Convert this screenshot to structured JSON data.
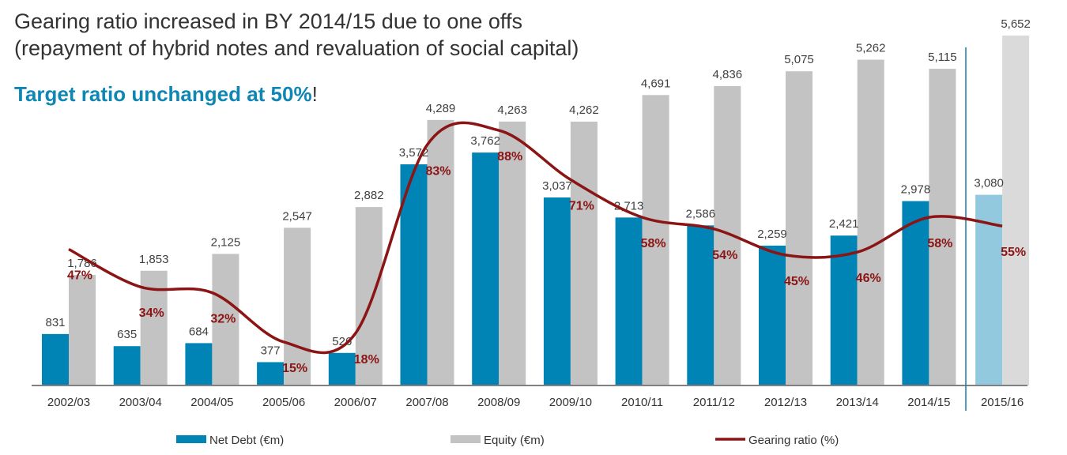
{
  "title": {
    "line1": "Gearing ratio increased in BY 2014/15 due to one offs",
    "line2": "(repayment of hybrid notes and revaluation of social capital)",
    "highlight": "Target ratio unchanged at 50%",
    "highlight_suffix": "!"
  },
  "chart_data": {
    "type": "bar",
    "categories": [
      "2002/03",
      "2003/04",
      "2004/05",
      "2005/06",
      "2006/07",
      "2007/08",
      "2008/09",
      "2009/10",
      "2010/11",
      "2011/12",
      "2012/13",
      "2013/14",
      "2014/15",
      "2015/16"
    ],
    "series": [
      {
        "name": "Net Debt (€m)",
        "kind": "bar",
        "color": "#0083b5",
        "forecast_color": "#92c9df",
        "values": [
          831,
          635,
          684,
          377,
          526,
          3572,
          3762,
          3037,
          2713,
          2586,
          2259,
          2421,
          2978,
          3080
        ],
        "labels": [
          "831",
          "635",
          "684",
          "377",
          "526",
          "3,572",
          "3,762",
          "3,037",
          "2,713",
          "2,586",
          "2,259",
          "2,421",
          "2,978",
          "3,080"
        ]
      },
      {
        "name": "Equity (€m)",
        "kind": "bar",
        "color": "#c3c3c3",
        "forecast_color": "#dadada",
        "values": [
          1786,
          1853,
          2125,
          2547,
          2882,
          4289,
          4263,
          4262,
          4691,
          4836,
          5075,
          5262,
          5115,
          5652
        ],
        "labels": [
          "1,786",
          "1,853",
          "2,125",
          "2,547",
          "2,882",
          "4,289",
          "4,263",
          "4,262",
          "4,691",
          "4,836",
          "5,075",
          "5,262",
          "5,115",
          "5,652"
        ]
      },
      {
        "name": "Gearing ratio (%)",
        "kind": "line",
        "color": "#8b1414",
        "values": [
          47,
          34,
          32,
          15,
          18,
          83,
          88,
          71,
          58,
          54,
          45,
          46,
          58,
          55
        ],
        "labels": [
          "47%",
          "34%",
          "32%",
          "15%",
          "18%",
          "83%",
          "88%",
          "71%",
          "58%",
          "54%",
          "45%",
          "46%",
          "58%",
          "55%"
        ]
      }
    ],
    "forecast_category": "2015/16",
    "ylim": [
      0,
      5700
    ],
    "gearing_ylim": [
      0,
      100
    ],
    "legend_position": "bottom",
    "grid": false
  },
  "colors": {
    "axis": "#808080",
    "divider": "#1a7fa8",
    "label": "#404040"
  }
}
